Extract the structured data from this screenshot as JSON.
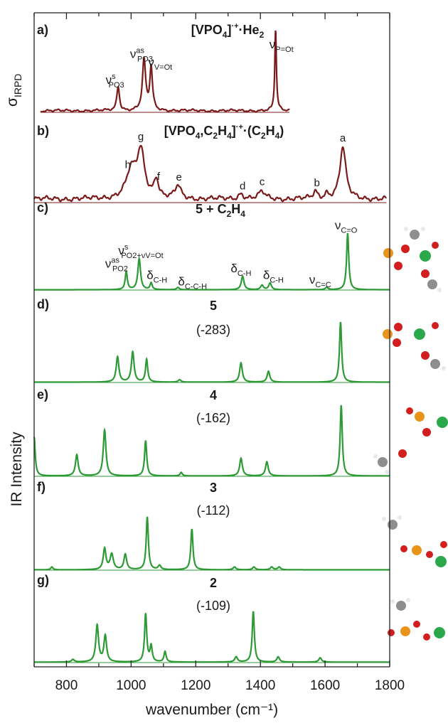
{
  "chart_data": {
    "type": "line",
    "xlabel": "wavenumber (cm⁻¹)",
    "ylabel": "IR Intensity",
    "ylabel_top": "σ",
    "ylabel_top_sub": "IRPD",
    "xlim": [
      700,
      1800
    ],
    "xticks": [
      "800",
      "1000",
      "1200",
      "1400",
      "1600",
      "1800"
    ],
    "panels": [
      {
        "label": "a)",
        "title_main": "[VPO",
        "title_sub": "4",
        "title_sup": "]",
        "title_charge": "·+",
        "title_tail": "·He",
        "title_tail_sub": "2",
        "color": "#7b1a1a",
        "xrange": [
          720,
          1490
        ],
        "baseline": 0.02,
        "noise": 0.015,
        "peaks": [
          [
            960,
            0.3,
            5
          ],
          [
            1040,
            0.62,
            6
          ],
          [
            1062,
            0.52,
            5
          ],
          [
            1447,
            1.0,
            3
          ]
        ],
        "annotations": [
          {
            "text": "ν",
            "sup": "s",
            "sub": "PO3",
            "x": 950
          },
          {
            "text": "ν",
            "sup": "as",
            "sub": "PO3",
            "x": 1032
          },
          {
            "text": "ν",
            "sup": "",
            "sub": "V=Ot",
            "x": 1090
          },
          {
            "text": "ν",
            "sup": "",
            "sub": "P=Ot",
            "x": 1465
          }
        ]
      },
      {
        "label": "b)",
        "title_main": "[VPO",
        "title_sub": "4",
        "title_mid": ",C",
        "title_sub2": "2",
        "title_mid2": "H",
        "title_sub3": "4",
        "title_sup": "]",
        "title_charge": "·+",
        "title_tail": "·(C",
        "title_tail_sub": "2",
        "title_tail2": "H",
        "title_tail_sub2": "4",
        "title_tail3": ")",
        "color": "#7b1a1a",
        "xrange": [
          700,
          1790
        ],
        "baseline": 0.06,
        "noise": 0.04,
        "peaks": [
          [
            1000,
            0.45,
            18
          ],
          [
            1030,
            0.78,
            14
          ],
          [
            1078,
            0.32,
            8
          ],
          [
            1145,
            0.22,
            10
          ],
          [
            1340,
            0.09,
            10
          ],
          [
            1405,
            0.12,
            12
          ],
          [
            1570,
            0.12,
            8
          ],
          [
            1605,
            0.08,
            8
          ],
          [
            1655,
            0.88,
            11
          ]
        ],
        "letters": [
          {
            "text": "h",
            "x": 990
          },
          {
            "text": "g",
            "x": 1030
          },
          {
            "text": "f",
            "x": 1085
          },
          {
            "text": "e",
            "x": 1148
          },
          {
            "text": "d",
            "x": 1345
          },
          {
            "text": "c",
            "x": 1405
          },
          {
            "text": "b",
            "x": 1575
          },
          {
            "text": "a",
            "x": 1655
          }
        ]
      },
      {
        "label": "c)",
        "title": "5 + C",
        "title_sub": "2",
        "title_mid": "H",
        "title_sub2": "4",
        "color": "#2e9a36",
        "xrange": [
          700,
          1800
        ],
        "peaks": [
          [
            985,
            0.32,
            4
          ],
          [
            1025,
            0.55,
            5
          ],
          [
            1062,
            0.12,
            4
          ],
          [
            1145,
            0.04,
            5
          ],
          [
            1345,
            0.24,
            5
          ],
          [
            1405,
            0.08,
            5
          ],
          [
            1430,
            0.12,
            5
          ],
          [
            1605,
            0.04,
            5
          ],
          [
            1670,
            1.0,
            4
          ]
        ],
        "annotations": [
          {
            "text": "ν",
            "sup": "as",
            "sub": "PO2",
            "x": 955
          },
          {
            "text": "ν",
            "sup": "s",
            "sub": "PO2+νV=Ot",
            "x": 1030
          },
          {
            "text": "δ",
            "sup": "",
            "sub": "C-H",
            "x": 1080
          },
          {
            "text": "δ",
            "sup": "",
            "sub": "C-C-H",
            "x": 1190
          },
          {
            "text": "δ",
            "sup": "",
            "sub": "C-H",
            "x": 1340
          },
          {
            "text": "δ",
            "sup": "",
            "sub": "C-H",
            "x": 1440
          },
          {
            "text": "ν",
            "sup": "",
            "sub": "C=C",
            "x": 1585
          },
          {
            "text": "ν",
            "sup": "",
            "sub": "C=O",
            "x": 1665
          }
        ]
      },
      {
        "label": "d)",
        "title": "5",
        "energy": "(-283)",
        "color": "#2e9a36",
        "xrange": [
          700,
          1800
        ],
        "peaks": [
          [
            958,
            0.42,
            5
          ],
          [
            1005,
            0.5,
            5
          ],
          [
            1048,
            0.38,
            4
          ],
          [
            1150,
            0.04,
            5
          ],
          [
            1340,
            0.32,
            5
          ],
          [
            1425,
            0.18,
            5
          ],
          [
            1648,
            1.0,
            4
          ]
        ]
      },
      {
        "label": "e)",
        "title": "4",
        "energy": "(-162)",
        "color": "#2e9a36",
        "xrange": [
          700,
          1800
        ],
        "peaks": [
          [
            700,
            0.55,
            4
          ],
          [
            832,
            0.3,
            5
          ],
          [
            918,
            0.65,
            5
          ],
          [
            1045,
            0.5,
            4
          ],
          [
            1155,
            0.05,
            4
          ],
          [
            1340,
            0.25,
            5
          ],
          [
            1420,
            0.2,
            5
          ],
          [
            1650,
            1.0,
            4
          ]
        ]
      },
      {
        "label": "f)",
        "title": "3",
        "energy": "(-112)",
        "color": "#2e9a36",
        "xrange": [
          700,
          1800
        ],
        "peaks": [
          [
            755,
            0.04,
            4
          ],
          [
            918,
            0.3,
            5
          ],
          [
            940,
            0.22,
            6
          ],
          [
            982,
            0.22,
            5
          ],
          [
            1050,
            0.75,
            4
          ],
          [
            1088,
            0.06,
            5
          ],
          [
            1188,
            0.58,
            4
          ],
          [
            1320,
            0.04,
            5
          ],
          [
            1380,
            0.04,
            5
          ],
          [
            1435,
            0.04,
            5
          ],
          [
            1458,
            0.04,
            5
          ]
        ]
      },
      {
        "label": "g)",
        "title": "2",
        "energy": "(-109)",
        "color": "#2e9a36",
        "xrange": [
          700,
          1800
        ],
        "peaks": [
          [
            820,
            0.03,
            5
          ],
          [
            895,
            0.42,
            5
          ],
          [
            920,
            0.3,
            5
          ],
          [
            1045,
            0.55,
            4
          ],
          [
            1062,
            0.18,
            4
          ],
          [
            1105,
            0.12,
            4
          ],
          [
            1325,
            0.06,
            5
          ],
          [
            1378,
            0.58,
            4
          ],
          [
            1455,
            0.06,
            5
          ],
          [
            1585,
            0.05,
            5
          ]
        ]
      }
    ]
  }
}
